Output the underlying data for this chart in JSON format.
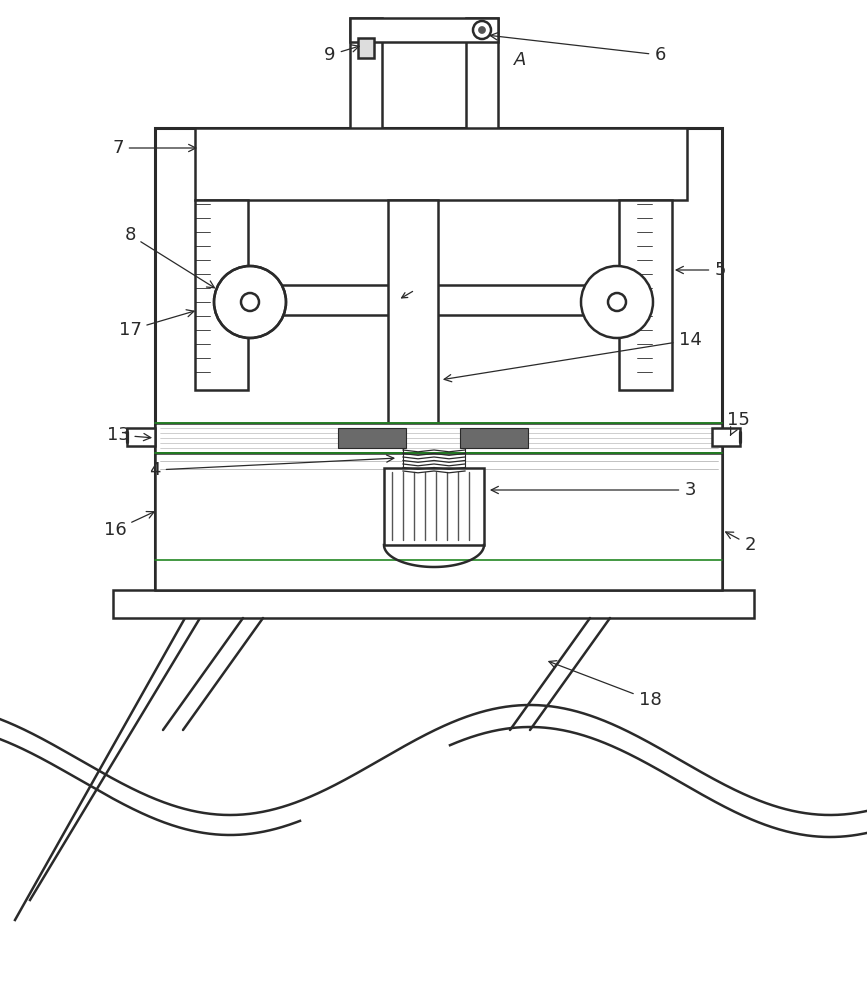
{
  "bg_color": "#ffffff",
  "line_color": "#2a2a2a",
  "lw_main": 1.8,
  "lw_thin": 0.8,
  "lw_thick": 2.2,
  "lw_green": 1.2,
  "green_color": "#228822",
  "gray_pad": "#6a6a6a",
  "font_size": 13
}
